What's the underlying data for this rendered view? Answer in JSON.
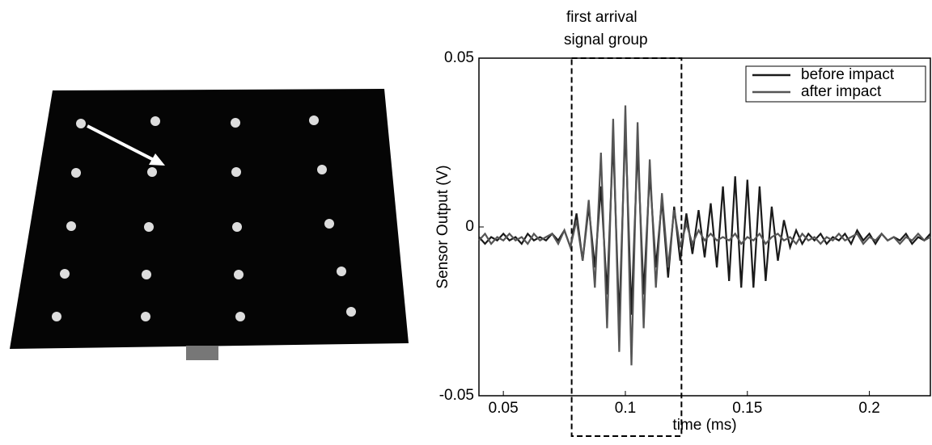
{
  "chart_data": {
    "type": "line",
    "ylabel": "Sensor Output (V)",
    "xlabel": "time (ms)",
    "xlim": [
      0.04,
      0.225
    ],
    "xticks": [
      0.05,
      0.1,
      0.15,
      0.2
    ],
    "ylim": [
      -0.05,
      0.05
    ],
    "yticks": [
      -0.05,
      0,
      0.05
    ],
    "legend": "upper right",
    "highlight": {
      "x": [
        0.078,
        0.123
      ],
      "label": [
        "first arrival",
        "signal group"
      ]
    },
    "x": [
      0.04,
      0.0425,
      0.045,
      0.0475,
      0.05,
      0.0525,
      0.055,
      0.0575,
      0.06,
      0.0625,
      0.065,
      0.0675,
      0.07,
      0.0725,
      0.075,
      0.0775,
      0.08,
      0.0825,
      0.085,
      0.0875,
      0.09,
      0.0925,
      0.095,
      0.0975,
      0.1,
      0.1025,
      0.105,
      0.1075,
      0.11,
      0.1125,
      0.115,
      0.1175,
      0.12,
      0.1225,
      0.125,
      0.1275,
      0.13,
      0.1325,
      0.135,
      0.1375,
      0.14,
      0.1425,
      0.145,
      0.1475,
      0.15,
      0.1525,
      0.155,
      0.1575,
      0.16,
      0.1625,
      0.165,
      0.1675,
      0.17,
      0.1725,
      0.175,
      0.1775,
      0.18,
      0.1825,
      0.185,
      0.1875,
      0.19,
      0.1925,
      0.195,
      0.1975,
      0.2,
      0.2025,
      0.205,
      0.2075,
      0.21,
      0.2125,
      0.215,
      0.2175,
      0.22,
      0.2225,
      0.225
    ],
    "series": [
      {
        "name": "before impact",
        "color": "#1a1a1a",
        "values": [
          -0.003,
          -0.005,
          -0.003,
          -0.004,
          -0.002,
          -0.004,
          -0.003,
          -0.005,
          -0.002,
          -0.004,
          -0.003,
          -0.004,
          -0.002,
          -0.004,
          -0.001,
          -0.006,
          0.004,
          -0.01,
          0.006,
          -0.012,
          0.012,
          -0.02,
          0.026,
          -0.028,
          0.03,
          -0.026,
          0.024,
          -0.02,
          0.016,
          -0.012,
          0.008,
          -0.015,
          0.006,
          -0.01,
          0.004,
          -0.008,
          0.005,
          -0.009,
          0.007,
          -0.012,
          0.012,
          -0.016,
          0.015,
          -0.018,
          0.014,
          -0.018,
          0.012,
          -0.016,
          0.006,
          -0.01,
          0.002,
          -0.006,
          -0.001,
          -0.005,
          -0.002,
          -0.004,
          -0.002,
          -0.005,
          -0.003,
          -0.004,
          -0.002,
          -0.005,
          -0.001,
          -0.004,
          -0.002,
          -0.005,
          -0.002,
          -0.004,
          -0.003,
          -0.004,
          -0.002,
          -0.005,
          -0.003,
          -0.004,
          -0.002
        ]
      },
      {
        "name": "after impact",
        "color": "#555555",
        "values": [
          -0.004,
          -0.002,
          -0.005,
          -0.003,
          -0.004,
          -0.002,
          -0.004,
          -0.003,
          -0.005,
          -0.002,
          -0.004,
          -0.003,
          -0.002,
          -0.005,
          -0.001,
          -0.006,
          0.002,
          -0.01,
          0.008,
          -0.018,
          0.022,
          -0.03,
          0.032,
          -0.037,
          0.036,
          -0.041,
          0.031,
          -0.03,
          0.02,
          -0.018,
          0.01,
          -0.012,
          0.005,
          -0.006,
          0.001,
          -0.005,
          -0.001,
          -0.004,
          -0.002,
          -0.004,
          -0.003,
          -0.004,
          -0.002,
          -0.005,
          -0.003,
          -0.004,
          -0.002,
          -0.005,
          -0.003,
          -0.002,
          -0.004,
          -0.003,
          -0.005,
          -0.002,
          -0.004,
          -0.003,
          -0.005,
          -0.003,
          -0.004,
          -0.002,
          -0.004,
          -0.003,
          -0.002,
          -0.005,
          -0.003,
          -0.004,
          -0.002,
          -0.004,
          -0.003,
          -0.005,
          -0.003,
          -0.004,
          -0.002,
          -0.004,
          -0.003
        ]
      }
    ]
  }
}
